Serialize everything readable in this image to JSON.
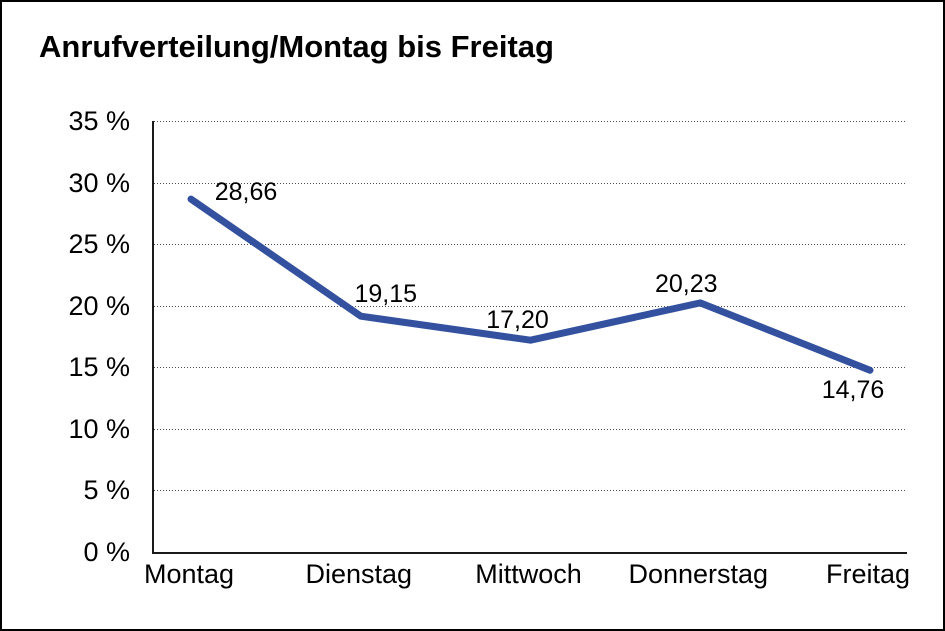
{
  "window": {
    "background": "#ffffff",
    "border_color": "#000000"
  },
  "chart_data": {
    "type": "line",
    "title": "Anrufverteilung/Montag bis Freitag",
    "categories": [
      "Montag",
      "Dienstag",
      "Mittwoch",
      "Donnerstag",
      "Freitag"
    ],
    "values": [
      28.66,
      19.15,
      17.2,
      20.23,
      14.76
    ],
    "data_labels": [
      "28,66",
      "19,15",
      "17,20",
      "20,23",
      "14,76"
    ],
    "xlabel": "",
    "ylabel": "",
    "ylim": [
      0,
      35
    ],
    "y_step": 5,
    "y_tick_labels": [
      "35 %",
      "30 %",
      "25 %",
      "20 %",
      "15 %",
      "10 %",
      "5 %",
      "0 %"
    ],
    "grid": "horizontal-dotted",
    "grid_color": "#4a4a4a",
    "axis_color": "#1a1a1a",
    "line_color": "#33519F",
    "legend": "none"
  }
}
